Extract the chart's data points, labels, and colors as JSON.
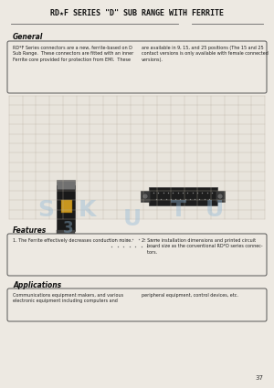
{
  "bg_color": "#ede9e2",
  "title": "RD★F SERIES \"D\" SUB RANGE WITH FERRITE",
  "title_fontsize": 6.0,
  "page_number": "37",
  "sections": {
    "general": {
      "header": "General",
      "header_fontsize": 5.5,
      "box_text_left": "RD*F Series connectors are a new, ferrite-based on D\nSub Range.  These connectors are fitted with an inner\nFerrite core provided for protection from EMI.  These",
      "box_text_right": "are available in 9, 15, and 25 positions (The 15 and 25\ncontact versions is only available with female connected\nversions).",
      "text_fontsize": 3.5
    },
    "features": {
      "header": "Features",
      "header_fontsize": 5.5,
      "box_text_left": "1. The Ferrite effectively decreases conduction noise.",
      "box_text_right": "2. Same installation dimensions and printed circuit\n    board size as the conventional RD*D series connec-\n    tors.",
      "text_fontsize": 3.5
    },
    "applications": {
      "header": "Applications",
      "header_fontsize": 5.5,
      "box_text_left": "Communications equipment makers, and various\nelectronic equipment including computers and",
      "box_text_right": "peripheral equipment, control devices, etc.",
      "text_fontsize": 3.5
    }
  }
}
